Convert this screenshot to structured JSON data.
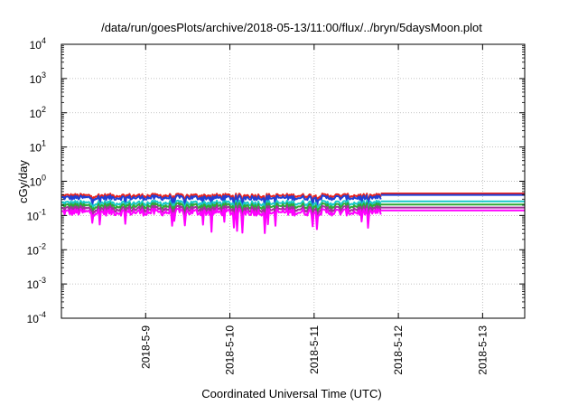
{
  "chart_data": {
    "type": "line",
    "title": "/data/run/goesPlots/archive/2018-05-13/11:00/flux/../bryn/5daysMoon.plot",
    "xlabel": "Coordinated Universal Time (UTC)",
    "ylabel": "cGy/day",
    "yscale": "log",
    "ylim": [
      0.0001,
      10000
    ],
    "y_ticks": [
      {
        "base": "10",
        "exp": "-4",
        "value": 0.0001
      },
      {
        "base": "10",
        "exp": "-3",
        "value": 0.001
      },
      {
        "base": "10",
        "exp": "-2",
        "value": 0.01
      },
      {
        "base": "10",
        "exp": "-1",
        "value": 0.1
      },
      {
        "base": "10",
        "exp": "0",
        "value": 1
      },
      {
        "base": "10",
        "exp": "1",
        "value": 10
      },
      {
        "base": "10",
        "exp": "2",
        "value": 100
      },
      {
        "base": "10",
        "exp": "3",
        "value": 1000
      },
      {
        "base": "10",
        "exp": "4",
        "value": 10000
      }
    ],
    "xlim": [
      "2018-05-08T00:00",
      "2018-05-13T12:00"
    ],
    "x_tick_labels": [
      "2018-5-9",
      "2018-5-10",
      "2018-5-11",
      "2018-5-12",
      "2018-5-13"
    ],
    "x_tick_values": [
      "2018-05-09T00:00",
      "2018-05-10T00:00",
      "2018-05-11T00:00",
      "2018-05-12T00:00",
      "2018-05-13T00:00"
    ],
    "grid": true,
    "legend": "none",
    "measured_until": "2018-05-11T19:00",
    "series": [
      {
        "color": "#e8221d",
        "value": 0.38,
        "flat_value": 0.44
      },
      {
        "color": "#1f3fd6",
        "value": 0.33,
        "flat_value": 0.4
      },
      {
        "color": "#19c9c9",
        "value": 0.23,
        "flat_value": 0.26
      },
      {
        "color": "#2ea836",
        "value": 0.19,
        "flat_value": 0.21
      },
      {
        "color": "#a1339b",
        "value": 0.155,
        "flat_value": 0.17
      },
      {
        "color": "#ff00ff",
        "value": 0.125,
        "flat_value": 0.14
      }
    ]
  }
}
